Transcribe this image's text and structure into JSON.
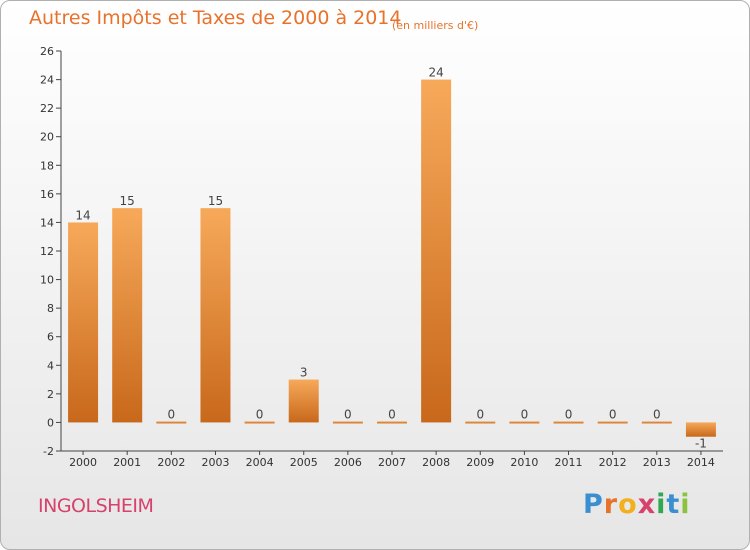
{
  "title": "Autres Impôts et Taxes de 2000 à 2014",
  "subtitle": "(en milliers d'€)",
  "commune": "INGOLSHEIM",
  "logo": {
    "text": "Proxiti",
    "letters": [
      "P",
      "r",
      "o",
      "x",
      "i",
      "t",
      "i"
    ],
    "colors": [
      "#3a8fd0",
      "#e8722b",
      "#f2b01e",
      "#d6426b",
      "#2fa84f",
      "#3a8fd0",
      "#8ac43f"
    ]
  },
  "colors": {
    "bar_top": "#f7a95a",
    "bar_bottom": "#c8681b",
    "accent": "#e8722b",
    "commune": "#d6426b"
  },
  "chart_data": {
    "type": "bar",
    "title": "Autres Impôts et Taxes de 2000 à 2014",
    "xlabel": "",
    "ylabel": "en milliers d'€",
    "categories": [
      "2000",
      "2001",
      "2002",
      "2003",
      "2004",
      "2005",
      "2006",
      "2007",
      "2008",
      "2009",
      "2010",
      "2011",
      "2012",
      "2013",
      "2014"
    ],
    "values": [
      14,
      15,
      0,
      15,
      0,
      3,
      0,
      0,
      24,
      0,
      0,
      0,
      0,
      0,
      -1
    ],
    "ylim": [
      -2,
      26
    ],
    "yticks": [
      -2,
      0,
      2,
      4,
      6,
      8,
      10,
      12,
      14,
      16,
      18,
      20,
      22,
      24,
      26
    ],
    "grid": false,
    "data_labels": true
  }
}
